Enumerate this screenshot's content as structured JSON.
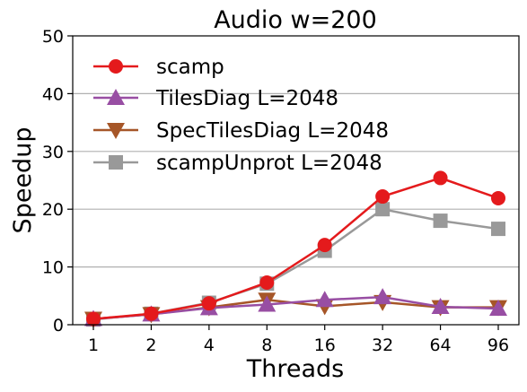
{
  "chart_data": {
    "type": "line",
    "title": "Audio w=200",
    "xlabel": "Threads",
    "ylabel": "Speedup",
    "categories": [
      "1",
      "2",
      "4",
      "8",
      "16",
      "32",
      "64",
      "96"
    ],
    "ylim": [
      0,
      50
    ],
    "yticks": [
      0,
      10,
      20,
      30,
      40,
      50
    ],
    "grid": "horizontal",
    "legend_position": "top-left",
    "series": [
      {
        "name": "scamp",
        "color": "#e41a1c",
        "marker": "circle",
        "values": [
          1.0,
          1.9,
          3.7,
          7.3,
          13.8,
          22.2,
          25.4,
          21.9
        ]
      },
      {
        "name": "TilesDiag L=2048",
        "color": "#984ea3",
        "marker": "triangle-up",
        "values": [
          1.0,
          1.8,
          2.9,
          3.5,
          4.3,
          4.8,
          3.1,
          2.8
        ]
      },
      {
        "name": "SpecTilesDiag L=2048",
        "color": "#a65628",
        "marker": "triangle-down",
        "values": [
          1.0,
          1.8,
          3.0,
          4.3,
          3.2,
          3.9,
          3.0,
          3.0
        ]
      },
      {
        "name": "scampUnprot L=2048",
        "color": "#999999",
        "marker": "square",
        "values": [
          0.9,
          1.9,
          3.8,
          7.1,
          12.8,
          20.0,
          18.0,
          16.6
        ]
      }
    ]
  }
}
